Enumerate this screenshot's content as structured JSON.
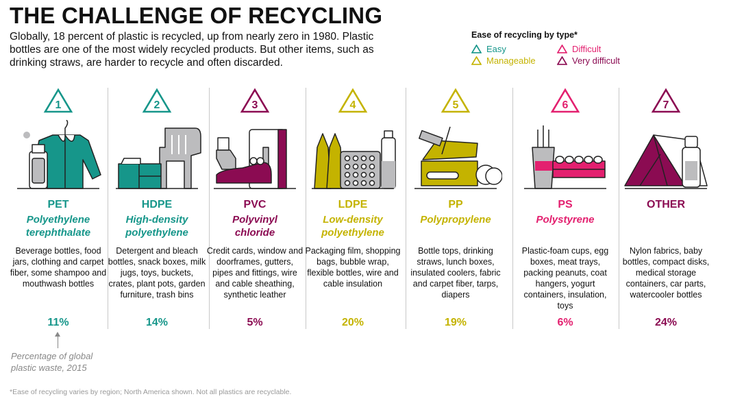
{
  "title": "THE CHALLENGE OF RECYCLING",
  "intro": "Globally, 18 percent of plastic is recycled, up from nearly zero in 1980. Plastic bottles are one of the most widely recycled products. But other items, such as drinking straws, are harder to recycle and often discarded.",
  "legend": {
    "title": "Ease of recycling by type*",
    "items": [
      {
        "label": "Easy",
        "color": "#16968a"
      },
      {
        "label": "Difficult",
        "color": "#e3206f"
      },
      {
        "label": "Manageable",
        "color": "#c4b300"
      },
      {
        "label": "Very difficult",
        "color": "#8b0b52"
      }
    ]
  },
  "colors": {
    "easy": "#16968a",
    "manageable": "#c4b300",
    "difficult": "#e3206f",
    "very_difficult": "#8b0b52",
    "grey": "#bcbcbe",
    "outline": "#222222"
  },
  "plastics": [
    {
      "number": "1",
      "abbr": "PET",
      "full": "Polyethylene terephthalate",
      "desc": "Beverage bottles, food jars, clothing and carpet fiber, some shampoo and mouthwash bottles",
      "pct": "11%",
      "ease": "easy",
      "icon": "jacket-bottle-icon"
    },
    {
      "number": "2",
      "abbr": "HDPE",
      "full": "High-density polyethylene",
      "desc": "Detergent and bleach bottles, snack boxes, milk jugs, toys, buckets, crates, plant pots, garden furniture, trash bins",
      "pct": "14%",
      "ease": "easy",
      "icon": "crate-chair-icon"
    },
    {
      "number": "3",
      "abbr": "PVC",
      "full": "Polyvinyl chloride",
      "desc": "Credit cards, window and doorframes, gutters, pipes and fittings, wire and cable sheathing, synthetic leather",
      "pct": "5%",
      "ease": "very_difficult",
      "icon": "pipe-shoe-door-icon"
    },
    {
      "number": "4",
      "abbr": "LDPE",
      "full": "Low-density polyethylene",
      "desc": "Packaging film, shopping bags, bubble wrap, flexible bottles, wire and cable insulation",
      "pct": "20%",
      "ease": "manageable",
      "icon": "bag-bubblewrap-icon"
    },
    {
      "number": "5",
      "abbr": "PP",
      "full": "Polypropylene",
      "desc": "Bottle tops, drinking straws, lunch boxes, insulated coolers, fabric and carpet fiber, tarps, diapers",
      "pct": "19%",
      "ease": "manageable",
      "icon": "lunchbox-icon"
    },
    {
      "number": "6",
      "abbr": "PS",
      "full": "Polystyrene",
      "desc": "Plastic-foam cups, egg boxes, meat trays, packing peanuts, coat hangers, yogurt containers, insulation, toys",
      "pct": "6%",
      "ease": "difficult",
      "icon": "cup-eggbox-icon"
    },
    {
      "number": "7",
      "abbr": "OTHER",
      "full": "",
      "desc": "Nylon fabrics, baby bottles, compact disks, medical storage containers, car parts, watercooler bottles",
      "pct": "24%",
      "ease": "very_difficult",
      "icon": "tent-bottle-icon"
    }
  ],
  "pct_note": "Percentage of global plastic waste, 2015",
  "footnote": "*Ease of recycling varies by region; North America shown. Not all plastics are recyclable."
}
